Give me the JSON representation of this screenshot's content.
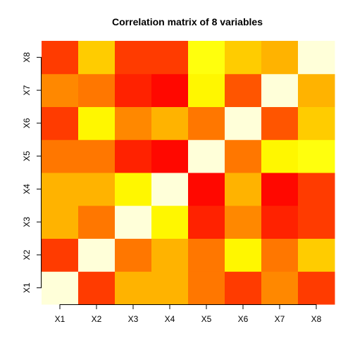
{
  "chart_data": {
    "type": "heatmap",
    "title": "Correlation matrix of 8 variables",
    "x_categories": [
      "X1",
      "X2",
      "X3",
      "X4",
      "X5",
      "X6",
      "X7",
      "X8"
    ],
    "y_categories": [
      "X1",
      "X2",
      "X3",
      "X4",
      "X5",
      "X6",
      "X7",
      "X8"
    ],
    "xlabel": "",
    "ylabel": "",
    "value_range": [
      -1,
      1
    ],
    "values": [
      [
        1.0,
        -0.65,
        0.05,
        0.05,
        -0.3,
        -0.65,
        -0.2,
        -0.65
      ],
      [
        -0.65,
        1.0,
        -0.3,
        0.05,
        -0.3,
        0.45,
        -0.3,
        0.2
      ],
      [
        0.05,
        -0.3,
        1.0,
        0.45,
        -0.8,
        -0.2,
        -0.8,
        -0.65
      ],
      [
        0.05,
        0.05,
        0.45,
        1.0,
        -0.95,
        0.05,
        -0.95,
        -0.65
      ],
      [
        -0.3,
        -0.3,
        -0.8,
        -0.95,
        1.0,
        -0.3,
        0.45,
        0.55
      ],
      [
        -0.65,
        0.45,
        -0.2,
        0.05,
        -0.3,
        1.0,
        -0.5,
        0.2
      ],
      [
        -0.2,
        -0.3,
        -0.8,
        -0.95,
        0.45,
        -0.5,
        1.0,
        0.05
      ],
      [
        -0.65,
        0.2,
        -0.65,
        -0.65,
        0.55,
        0.2,
        0.05,
        1.0
      ]
    ],
    "color_scale": [
      {
        "value": -1.0,
        "color": "#FF0000"
      },
      {
        "value": -0.75,
        "color": "#FF2A00"
      },
      {
        "value": -0.5,
        "color": "#FF5500"
      },
      {
        "value": -0.25,
        "color": "#FF8000"
      },
      {
        "value": 0.0,
        "color": "#FFAA00"
      },
      {
        "value": 0.25,
        "color": "#FFD500"
      },
      {
        "value": 0.5,
        "color": "#FFFF00"
      },
      {
        "value": 0.75,
        "color": "#FFFF40"
      },
      {
        "value": 1.0,
        "color": "#FFFFD9"
      }
    ]
  }
}
